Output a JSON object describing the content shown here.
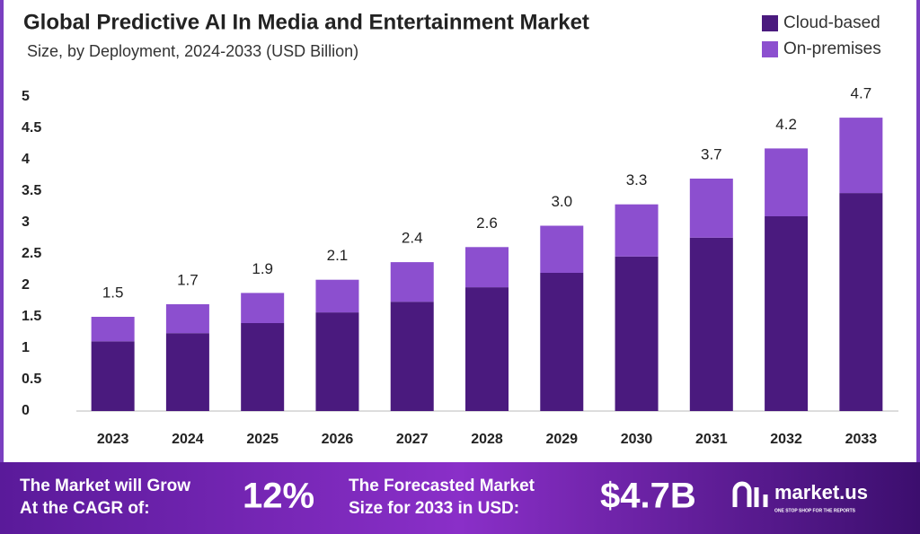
{
  "chart_data": {
    "type": "stacked-bar",
    "title": "Global Predictive AI In Media and Entertainment Market",
    "subtitle": "Size, by Deployment, 2024-2033 (USD Billion)",
    "categories": [
      "2023",
      "2024",
      "2025",
      "2026",
      "2027",
      "2028",
      "2029",
      "2030",
      "2031",
      "2032",
      "2033"
    ],
    "series": [
      {
        "name": "Cloud-based",
        "color": "#4a1a7e",
        "values": [
          1.11,
          1.24,
          1.4,
          1.57,
          1.74,
          1.97,
          2.2,
          2.46,
          2.76,
          3.1,
          3.47
        ]
      },
      {
        "name": "On-premises",
        "color": "#8c4fcf",
        "values": [
          0.39,
          0.46,
          0.48,
          0.52,
          0.63,
          0.64,
          0.75,
          0.83,
          0.94,
          1.08,
          1.2
        ]
      }
    ],
    "total_labels": [
      "1.5",
      "1.7",
      "1.9",
      "2.1",
      "2.4",
      "2.6",
      "3.0",
      "3.3",
      "3.7",
      "4.2",
      "4.7"
    ],
    "ylim": [
      0,
      5
    ],
    "yticks": [
      0,
      0.5,
      1,
      1.5,
      2,
      2.5,
      3,
      3.5,
      4,
      4.5,
      5
    ],
    "legend": "top-right"
  },
  "footer": {
    "cagr_text_1": "The Market will Grow",
    "cagr_text_2": "At the CAGR of:",
    "cagr": "12%",
    "forecast_text_1": "The Forecasted Market",
    "forecast_text_2": "Size for 2033 in USD:",
    "forecast": "$4.7B",
    "brand": "market.us",
    "tagline": "ONE STOP SHOP FOR THE REPORTS"
  }
}
